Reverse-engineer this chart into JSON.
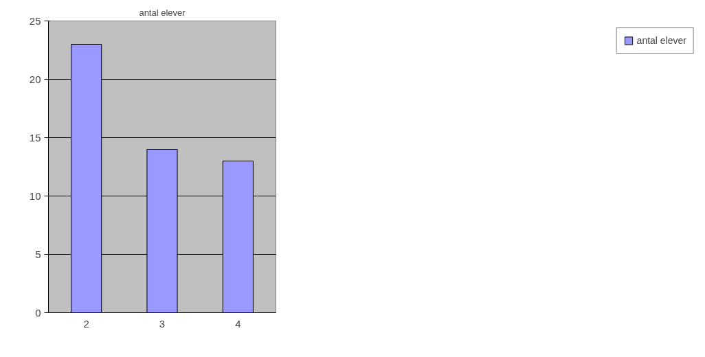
{
  "chart_data": {
    "type": "bar",
    "title": "antal elever",
    "categories": [
      "2",
      "3",
      "4"
    ],
    "series": [
      {
        "name": "antal elever",
        "color": "#9999ff",
        "values": [
          23,
          14,
          13
        ]
      }
    ],
    "ylim": [
      0,
      25
    ],
    "yticks": [
      0,
      5,
      10,
      15,
      20,
      25
    ],
    "grid": "y",
    "legend": "right"
  }
}
